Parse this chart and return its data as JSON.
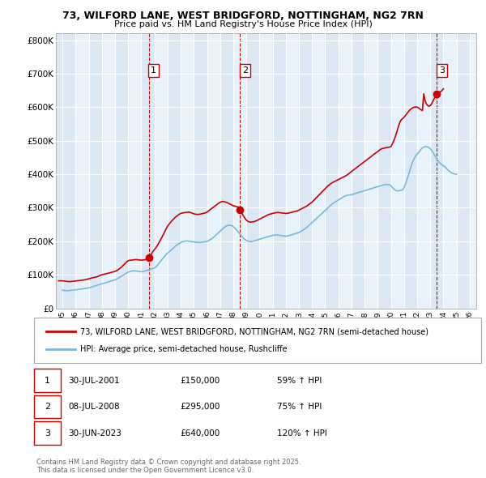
{
  "title_line1": "73, WILFORD LANE, WEST BRIDGFORD, NOTTINGHAM, NG2 7RN",
  "title_line2": "Price paid vs. HM Land Registry's House Price Index (HPI)",
  "background_color": "#ffffff",
  "plot_bg_color": "#dce9f5",
  "grid_color": "#ffffff",
  "sale_label_info": [
    {
      "label": "1",
      "date": "30-JUL-2001",
      "price": "£150,000",
      "pct": "59% ↑ HPI"
    },
    {
      "label": "2",
      "date": "08-JUL-2008",
      "price": "£295,000",
      "pct": "75% ↑ HPI"
    },
    {
      "label": "3",
      "date": "30-JUN-2023",
      "price": "£640,000",
      "pct": "120% ↑ HPI"
    }
  ],
  "sale_years": [
    2001.58,
    2008.52,
    2023.5
  ],
  "sale_prices": [
    150000,
    295000,
    640000
  ],
  "hpi_line_color": "#7ab8d9",
  "price_line_color": "#cc0000",
  "sale_marker_color": "#cc0000",
  "vline_color": "#cc0000",
  "ylim": [
    0,
    820000
  ],
  "yticks": [
    0,
    100000,
    200000,
    300000,
    400000,
    500000,
    600000,
    700000,
    800000
  ],
  "ytick_labels": [
    "£0",
    "£100K",
    "£200K",
    "£300K",
    "£400K",
    "£500K",
    "£600K",
    "£700K",
    "£800K"
  ],
  "xlim_start": 1994.5,
  "xlim_end": 2026.5,
  "legend_line1": "73, WILFORD LANE, WEST BRIDGFORD, NOTTINGHAM, NG2 7RN (semi-detached house)",
  "legend_line2": "HPI: Average price, semi-detached house, Rushcliffe",
  "footer": "Contains HM Land Registry data © Crown copyright and database right 2025.\nThis data is licensed under the Open Government Licence v3.0.",
  "hpi_data_x": [
    1995.0,
    1995.083,
    1995.167,
    1995.25,
    1995.333,
    1995.417,
    1995.5,
    1995.583,
    1995.667,
    1995.75,
    1995.833,
    1995.917,
    1996.0,
    1996.083,
    1996.167,
    1996.25,
    1996.333,
    1996.417,
    1996.5,
    1996.583,
    1996.667,
    1996.75,
    1996.833,
    1996.917,
    1997.0,
    1997.083,
    1997.167,
    1997.25,
    1997.333,
    1997.417,
    1997.5,
    1997.583,
    1997.667,
    1997.75,
    1997.833,
    1997.917,
    1998.0,
    1998.083,
    1998.167,
    1998.25,
    1998.333,
    1998.417,
    1998.5,
    1998.583,
    1998.667,
    1998.75,
    1998.833,
    1998.917,
    1999.0,
    1999.083,
    1999.167,
    1999.25,
    1999.333,
    1999.417,
    1999.5,
    1999.583,
    1999.667,
    1999.75,
    1999.833,
    1999.917,
    2000.0,
    2000.083,
    2000.167,
    2000.25,
    2000.333,
    2000.417,
    2000.5,
    2000.583,
    2000.667,
    2000.75,
    2000.833,
    2000.917,
    2001.0,
    2001.083,
    2001.167,
    2001.25,
    2001.333,
    2001.417,
    2001.5,
    2001.583,
    2001.667,
    2001.75,
    2001.833,
    2001.917,
    2002.0,
    2002.083,
    2002.167,
    2002.25,
    2002.333,
    2002.417,
    2002.5,
    2002.583,
    2002.667,
    2002.75,
    2002.833,
    2002.917,
    2003.0,
    2003.083,
    2003.167,
    2003.25,
    2003.333,
    2003.417,
    2003.5,
    2003.583,
    2003.667,
    2003.75,
    2003.833,
    2003.917,
    2004.0,
    2004.083,
    2004.167,
    2004.25,
    2004.333,
    2004.417,
    2004.5,
    2004.583,
    2004.667,
    2004.75,
    2004.833,
    2004.917,
    2005.0,
    2005.083,
    2005.167,
    2005.25,
    2005.333,
    2005.417,
    2005.5,
    2005.583,
    2005.667,
    2005.75,
    2005.833,
    2005.917,
    2006.0,
    2006.083,
    2006.167,
    2006.25,
    2006.333,
    2006.417,
    2006.5,
    2006.583,
    2006.667,
    2006.75,
    2006.833,
    2006.917,
    2007.0,
    2007.083,
    2007.167,
    2007.25,
    2007.333,
    2007.417,
    2007.5,
    2007.583,
    2007.667,
    2007.75,
    2007.833,
    2007.917,
    2008.0,
    2008.083,
    2008.167,
    2008.25,
    2008.333,
    2008.417,
    2008.5,
    2008.583,
    2008.667,
    2008.75,
    2008.833,
    2008.917,
    2009.0,
    2009.083,
    2009.167,
    2009.25,
    2009.333,
    2009.417,
    2009.5,
    2009.583,
    2009.667,
    2009.75,
    2009.833,
    2009.917,
    2010.0,
    2010.083,
    2010.167,
    2010.25,
    2010.333,
    2010.417,
    2010.5,
    2010.583,
    2010.667,
    2010.75,
    2010.833,
    2010.917,
    2011.0,
    2011.083,
    2011.167,
    2011.25,
    2011.333,
    2011.417,
    2011.5,
    2011.583,
    2011.667,
    2011.75,
    2011.833,
    2011.917,
    2012.0,
    2012.083,
    2012.167,
    2012.25,
    2012.333,
    2012.417,
    2012.5,
    2012.583,
    2012.667,
    2012.75,
    2012.833,
    2012.917,
    2013.0,
    2013.083,
    2013.167,
    2013.25,
    2013.333,
    2013.417,
    2013.5,
    2013.583,
    2013.667,
    2013.75,
    2013.833,
    2013.917,
    2014.0,
    2014.083,
    2014.167,
    2014.25,
    2014.333,
    2014.417,
    2014.5,
    2014.583,
    2014.667,
    2014.75,
    2014.833,
    2014.917,
    2015.0,
    2015.083,
    2015.167,
    2015.25,
    2015.333,
    2015.417,
    2015.5,
    2015.583,
    2015.667,
    2015.75,
    2015.833,
    2015.917,
    2016.0,
    2016.083,
    2016.167,
    2016.25,
    2016.333,
    2016.417,
    2016.5,
    2016.583,
    2016.667,
    2016.75,
    2016.833,
    2016.917,
    2017.0,
    2017.083,
    2017.167,
    2017.25,
    2017.333,
    2017.417,
    2017.5,
    2017.583,
    2017.667,
    2017.75,
    2017.833,
    2017.917,
    2018.0,
    2018.083,
    2018.167,
    2018.25,
    2018.333,
    2018.417,
    2018.5,
    2018.583,
    2018.667,
    2018.75,
    2018.833,
    2018.917,
    2019.0,
    2019.083,
    2019.167,
    2019.25,
    2019.333,
    2019.417,
    2019.5,
    2019.583,
    2019.667,
    2019.75,
    2019.833,
    2019.917,
    2020.0,
    2020.083,
    2020.167,
    2020.25,
    2020.333,
    2020.417,
    2020.5,
    2020.583,
    2020.667,
    2020.75,
    2020.833,
    2020.917,
    2021.0,
    2021.083,
    2021.167,
    2021.25,
    2021.333,
    2021.417,
    2021.5,
    2021.583,
    2021.667,
    2021.75,
    2021.833,
    2021.917,
    2022.0,
    2022.083,
    2022.167,
    2022.25,
    2022.333,
    2022.417,
    2022.5,
    2022.583,
    2022.667,
    2022.75,
    2022.833,
    2022.917,
    2023.0,
    2023.083,
    2023.167,
    2023.25,
    2023.333,
    2023.417,
    2023.5,
    2023.583,
    2023.667,
    2023.75,
    2023.833,
    2023.917,
    2024.0,
    2024.083,
    2024.167,
    2024.25,
    2024.333,
    2024.417,
    2024.5,
    2024.583,
    2024.667,
    2024.75,
    2024.833,
    2024.917,
    2025.0
  ],
  "hpi_data_y": [
    54000,
    53500,
    53000,
    52800,
    52500,
    52300,
    53000,
    53500,
    54000,
    54200,
    54500,
    55000,
    55200,
    55500,
    56000,
    56500,
    57000,
    57500,
    58000,
    58500,
    59000,
    59500,
    60000,
    60500,
    61000,
    62000,
    63000,
    64000,
    65000,
    66000,
    67000,
    68000,
    69000,
    70000,
    71000,
    72000,
    73000,
    74000,
    75000,
    76000,
    77000,
    78000,
    79000,
    80000,
    81000,
    82000,
    83000,
    84000,
    85000,
    86500,
    88000,
    90000,
    92000,
    94000,
    96000,
    98000,
    100000,
    102000,
    104000,
    106000,
    108000,
    109000,
    110000,
    111000,
    111500,
    112000,
    111800,
    111500,
    111000,
    110500,
    110000,
    109500,
    109000,
    109500,
    110000,
    111000,
    112000,
    113000,
    114000,
    115000,
    116000,
    117000,
    118000,
    119000,
    120000,
    123000,
    126000,
    130000,
    134000,
    138000,
    142000,
    146000,
    150000,
    154000,
    158000,
    162000,
    164000,
    167000,
    170000,
    173000,
    176000,
    179000,
    182000,
    185000,
    188000,
    190000,
    192000,
    194000,
    196000,
    198000,
    199000,
    200000,
    200500,
    201000,
    200800,
    200500,
    200000,
    199500,
    199000,
    198500,
    198000,
    197500,
    197000,
    196800,
    196500,
    196500,
    196800,
    197000,
    197500,
    198000,
    198500,
    199000,
    200000,
    201000,
    203000,
    205000,
    207000,
    209000,
    212000,
    215000,
    218000,
    221000,
    224000,
    227000,
    230000,
    233000,
    236000,
    239000,
    242000,
    244000,
    246000,
    247000,
    248000,
    247500,
    247000,
    246000,
    244000,
    241000,
    238000,
    234000,
    230000,
    226000,
    222000,
    218000,
    214000,
    210000,
    207000,
    205000,
    203000,
    201000,
    200000,
    199500,
    199000,
    199500,
    200000,
    201000,
    202000,
    203000,
    204000,
    205000,
    206000,
    207000,
    208000,
    209000,
    210000,
    211000,
    212000,
    213000,
    214000,
    215000,
    216000,
    217000,
    217500,
    218000,
    218500,
    219000,
    218800,
    218500,
    218000,
    217500,
    217000,
    216500,
    216000,
    215500,
    215000,
    215500,
    216000,
    217000,
    218000,
    219000,
    220000,
    221000,
    222000,
    223000,
    224000,
    225000,
    226000,
    228000,
    230000,
    232000,
    234000,
    236000,
    238000,
    241000,
    244000,
    247000,
    250000,
    253000,
    256000,
    259000,
    262000,
    265000,
    268000,
    271000,
    274000,
    277000,
    280000,
    283000,
    286000,
    289000,
    292000,
    295000,
    298000,
    301000,
    304000,
    307000,
    310000,
    313000,
    315000,
    317000,
    319000,
    321000,
    323000,
    325000,
    327000,
    329000,
    331000,
    333000,
    335000,
    336000,
    337000,
    337500,
    338000,
    338500,
    339000,
    340000,
    341000,
    342000,
    343000,
    344000,
    345000,
    346000,
    347000,
    348000,
    349000,
    350000,
    351000,
    352000,
    353000,
    354000,
    355000,
    356000,
    357000,
    358000,
    359000,
    360000,
    361000,
    362000,
    363000,
    364000,
    365000,
    366000,
    367000,
    368000,
    368500,
    369000,
    369500,
    369000,
    368500,
    368000,
    366000,
    362000,
    358000,
    355000,
    353000,
    351000,
    350000,
    350500,
    351000,
    352000,
    353000,
    354000,
    360000,
    368000,
    377000,
    387000,
    397000,
    408000,
    419000,
    429000,
    438000,
    445000,
    451000,
    456000,
    460000,
    464000,
    468000,
    472000,
    476000,
    479000,
    481000,
    482000,
    482500,
    482000,
    481000,
    479000,
    476000,
    472000,
    467000,
    462000,
    456000,
    450000,
    445000,
    440000,
    436000,
    433000,
    430000,
    428000,
    425000,
    423000,
    420000,
    417000,
    413000,
    410000,
    407000,
    405000,
    403000,
    402000,
    401000,
    400500,
    400000,
    400500,
    401000,
    402000,
    403000,
    404000,
    405000,
    406000,
    407000,
    408000,
    409000,
    410000,
    313000
  ],
  "price_data_x": [
    1994.7,
    1995.0,
    1995.1,
    1995.2,
    1995.3,
    1995.4,
    1995.5,
    1995.6,
    1995.7,
    1995.8,
    1995.9,
    1996.0,
    1996.1,
    1996.2,
    1996.3,
    1996.4,
    1996.5,
    1996.6,
    1996.7,
    1996.8,
    1996.9,
    1997.0,
    1997.1,
    1997.2,
    1997.3,
    1997.4,
    1997.5,
    1997.6,
    1997.7,
    1997.8,
    1997.9,
    1998.0,
    1998.1,
    1998.2,
    1998.3,
    1998.4,
    1998.5,
    1998.6,
    1998.7,
    1998.8,
    1998.9,
    1999.0,
    1999.1,
    1999.2,
    1999.3,
    1999.4,
    1999.5,
    1999.6,
    1999.7,
    1999.8,
    1999.9,
    2000.0,
    2000.1,
    2000.2,
    2000.3,
    2000.4,
    2000.5,
    2000.6,
    2000.7,
    2000.8,
    2000.9,
    2001.0,
    2001.1,
    2001.2,
    2001.3,
    2001.4,
    2001.58,
    2001.7,
    2001.8,
    2001.9,
    2002.0,
    2002.1,
    2002.2,
    2002.3,
    2002.4,
    2002.5,
    2002.6,
    2002.7,
    2002.8,
    2002.9,
    2003.0,
    2003.1,
    2003.2,
    2003.3,
    2003.4,
    2003.5,
    2003.6,
    2003.7,
    2003.8,
    2003.9,
    2004.0,
    2004.1,
    2004.2,
    2004.3,
    2004.4,
    2004.5,
    2004.6,
    2004.7,
    2004.8,
    2004.9,
    2005.0,
    2005.1,
    2005.2,
    2005.3,
    2005.4,
    2005.5,
    2005.6,
    2005.7,
    2005.8,
    2005.9,
    2006.0,
    2006.1,
    2006.2,
    2006.3,
    2006.4,
    2006.5,
    2006.6,
    2006.7,
    2006.8,
    2006.9,
    2007.0,
    2007.1,
    2007.2,
    2007.3,
    2007.4,
    2007.5,
    2007.6,
    2007.7,
    2007.8,
    2007.9,
    2008.0,
    2008.1,
    2008.2,
    2008.3,
    2008.4,
    2008.52,
    2008.6,
    2008.7,
    2008.8,
    2008.9,
    2009.0,
    2009.1,
    2009.2,
    2009.3,
    2009.4,
    2009.5,
    2009.6,
    2009.7,
    2009.8,
    2009.9,
    2010.0,
    2010.1,
    2010.2,
    2010.3,
    2010.4,
    2010.5,
    2010.6,
    2010.7,
    2010.8,
    2010.9,
    2011.0,
    2011.1,
    2011.2,
    2011.3,
    2011.4,
    2011.5,
    2011.6,
    2011.7,
    2011.8,
    2011.9,
    2012.0,
    2012.1,
    2012.2,
    2012.3,
    2012.4,
    2012.5,
    2012.6,
    2012.7,
    2012.8,
    2012.9,
    2013.0,
    2013.1,
    2013.2,
    2013.3,
    2013.4,
    2013.5,
    2013.6,
    2013.7,
    2013.8,
    2013.9,
    2014.0,
    2014.1,
    2014.2,
    2014.3,
    2014.4,
    2014.5,
    2014.6,
    2014.7,
    2014.8,
    2014.9,
    2015.0,
    2015.1,
    2015.2,
    2015.3,
    2015.4,
    2015.5,
    2015.6,
    2015.7,
    2015.8,
    2015.9,
    2016.0,
    2016.1,
    2016.2,
    2016.3,
    2016.4,
    2016.5,
    2016.6,
    2016.7,
    2016.8,
    2016.9,
    2017.0,
    2017.1,
    2017.2,
    2017.3,
    2017.4,
    2017.5,
    2017.6,
    2017.7,
    2017.8,
    2017.9,
    2018.0,
    2018.1,
    2018.2,
    2018.3,
    2018.4,
    2018.5,
    2018.6,
    2018.7,
    2018.8,
    2018.9,
    2019.0,
    2019.1,
    2019.2,
    2019.3,
    2019.4,
    2019.5,
    2019.6,
    2019.7,
    2019.8,
    2019.9,
    2020.0,
    2020.1,
    2020.2,
    2020.3,
    2020.4,
    2020.5,
    2020.6,
    2020.7,
    2020.8,
    2020.9,
    2021.0,
    2021.1,
    2021.2,
    2021.3,
    2021.4,
    2021.5,
    2021.6,
    2021.7,
    2021.8,
    2021.9,
    2022.0,
    2022.1,
    2022.2,
    2022.3,
    2022.4,
    2022.5,
    2022.6,
    2022.7,
    2022.8,
    2022.9,
    2023.0,
    2023.1,
    2023.2,
    2023.3,
    2023.4,
    2023.5,
    2023.6,
    2023.7,
    2023.8,
    2023.9,
    2024.0,
    2024.1,
    2024.2,
    2024.3,
    2024.4,
    2024.5,
    2024.6,
    2024.7,
    2024.8,
    2024.9,
    2025.0
  ],
  "price_data_y": [
    82000,
    82000,
    81500,
    81000,
    80500,
    80000,
    79500,
    79800,
    80200,
    80500,
    81000,
    81500,
    82000,
    82500,
    83000,
    83500,
    84000,
    84500,
    85000,
    86000,
    87000,
    88000,
    89000,
    90000,
    91000,
    92000,
    93000,
    94000,
    95000,
    97000,
    99000,
    100000,
    101000,
    102000,
    103000,
    104000,
    105000,
    106000,
    107000,
    108000,
    109000,
    110000,
    112000,
    114000,
    117000,
    120000,
    123000,
    127000,
    131000,
    135000,
    139000,
    142000,
    143000,
    143500,
    144000,
    144500,
    145000,
    145500,
    145000,
    144500,
    144000,
    143500,
    144000,
    144500,
    145000,
    146000,
    150000,
    158000,
    164000,
    170000,
    175000,
    180000,
    186000,
    193000,
    200000,
    207000,
    214000,
    222000,
    230000,
    238000,
    245000,
    250000,
    255000,
    260000,
    264000,
    268000,
    272000,
    275000,
    278000,
    281000,
    283000,
    284000,
    285000,
    285500,
    286000,
    286500,
    287000,
    286500,
    285000,
    283500,
    282000,
    281000,
    280500,
    280000,
    280500,
    281000,
    282000,
    283000,
    284000,
    285000,
    287000,
    290000,
    293000,
    296000,
    299000,
    302000,
    305000,
    308000,
    311000,
    314000,
    316000,
    318000,
    319000,
    318000,
    317000,
    316000,
    314000,
    312000,
    310000,
    308000,
    306000,
    305000,
    304000,
    303000,
    302000,
    295000,
    288000,
    281000,
    274000,
    268000,
    263000,
    260000,
    258000,
    257000,
    257500,
    258000,
    259000,
    260000,
    262000,
    264000,
    266000,
    268000,
    270000,
    272000,
    274000,
    276000,
    278000,
    280000,
    281000,
    282000,
    283000,
    284000,
    285000,
    285500,
    286000,
    285500,
    285000,
    284500,
    284000,
    283500,
    283000,
    283500,
    284000,
    285000,
    286000,
    287000,
    288000,
    289000,
    290000,
    291000,
    293000,
    295000,
    297000,
    299000,
    301000,
    303000,
    305000,
    308000,
    311000,
    314000,
    317000,
    321000,
    325000,
    329000,
    333000,
    337000,
    341000,
    345000,
    349000,
    353000,
    357000,
    361000,
    365000,
    368000,
    371000,
    374000,
    376000,
    378000,
    380000,
    382000,
    384000,
    386000,
    388000,
    390000,
    392000,
    394000,
    396000,
    399000,
    402000,
    405000,
    408000,
    411000,
    414000,
    417000,
    420000,
    423000,
    426000,
    429000,
    432000,
    435000,
    438000,
    441000,
    444000,
    447000,
    450000,
    453000,
    456000,
    459000,
    462000,
    465000,
    468000,
    471000,
    474000,
    476000,
    477000,
    478000,
    479000,
    480000,
    480500,
    481000,
    482000,
    490000,
    498000,
    508000,
    520000,
    533000,
    546000,
    557000,
    563000,
    566000,
    570000,
    575000,
    580000,
    585000,
    590000,
    594000,
    597000,
    599000,
    600000,
    600500,
    600000,
    598000,
    595000,
    592000,
    590000,
    640000,
    620000,
    610000,
    605000,
    603000,
    605000,
    610000,
    618000,
    626000,
    634000,
    640000,
    643000,
    645000,
    647000,
    650000,
    655000
  ]
}
